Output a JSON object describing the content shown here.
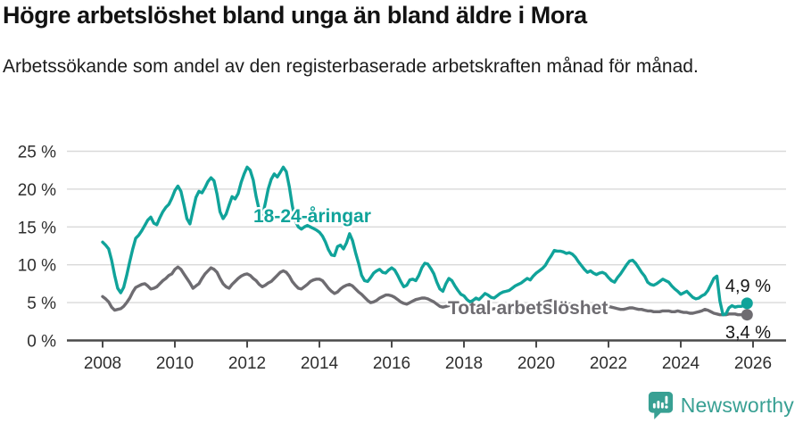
{
  "header": {
    "title": "Högre arbetslöshet bland unga än bland äldre i Mora",
    "subtitle": "Arbetssökande som andel av den registerbaserade arbetskraften månad för månad."
  },
  "chart_data": {
    "type": "line",
    "title": "Högre arbetslöshet bland unga än bland äldre i Mora",
    "subtitle": "Arbetssökande som andel av den registerbaserade arbetskraften månad för månad.",
    "x_start": "2008-01",
    "frequency": "monthly",
    "ylim": [
      0,
      25
    ],
    "grid": "horizontal",
    "legend_position": "inline-labels",
    "y_ticks": [
      {
        "value": 0,
        "label": "0 %"
      },
      {
        "value": 5,
        "label": "5 %"
      },
      {
        "value": 10,
        "label": "10 %"
      },
      {
        "value": 15,
        "label": "15 %"
      },
      {
        "value": 20,
        "label": "20 %"
      },
      {
        "value": 25,
        "label": "25 %"
      }
    ],
    "x_ticks": [
      {
        "value": 2008,
        "label": "2008"
      },
      {
        "value": 2010,
        "label": "2010"
      },
      {
        "value": 2012,
        "label": "2012"
      },
      {
        "value": 2014,
        "label": "2014"
      },
      {
        "value": 2016,
        "label": "2016"
      },
      {
        "value": 2018,
        "label": "2018"
      },
      {
        "value": 2020,
        "label": "2020"
      },
      {
        "value": 2022,
        "label": "2022"
      },
      {
        "value": 2024,
        "label": "2024"
      },
      {
        "value": 2026,
        "label": "2026"
      }
    ],
    "series": [
      {
        "name": "Total arbetslöshet",
        "color": "#6e6c71",
        "end_value_label": "3,4 %",
        "values": [
          5.8,
          5.5,
          5.1,
          4.4,
          4.0,
          4.1,
          4.2,
          4.5,
          5.0,
          5.6,
          6.4,
          7.0,
          7.2,
          7.4,
          7.5,
          7.2,
          6.8,
          6.9,
          7.1,
          7.5,
          7.9,
          8.2,
          8.6,
          8.8,
          9.4,
          9.7,
          9.4,
          8.8,
          8.2,
          7.6,
          6.9,
          7.2,
          7.5,
          8.2,
          8.8,
          9.2,
          9.6,
          9.4,
          9.0,
          8.2,
          7.5,
          7.1,
          6.9,
          7.4,
          7.8,
          8.2,
          8.5,
          8.7,
          8.8,
          8.6,
          8.2,
          7.9,
          7.4,
          7.1,
          7.3,
          7.6,
          7.8,
          8.2,
          8.6,
          9.0,
          9.2,
          9.0,
          8.5,
          7.8,
          7.3,
          6.9,
          6.8,
          7.1,
          7.4,
          7.8,
          8.0,
          8.1,
          8.1,
          7.9,
          7.4,
          6.9,
          6.5,
          6.2,
          6.4,
          6.8,
          7.1,
          7.3,
          7.4,
          7.2,
          6.8,
          6.4,
          6.1,
          5.7,
          5.3,
          5.0,
          5.1,
          5.3,
          5.6,
          5.8,
          6.0,
          6.0,
          5.9,
          5.7,
          5.4,
          5.1,
          4.9,
          4.8,
          5.0,
          5.2,
          5.4,
          5.5,
          5.6,
          5.6,
          5.5,
          5.3,
          5.1,
          4.8,
          4.5,
          4.4,
          4.5,
          4.6,
          4.8,
          4.8,
          4.7,
          4.6,
          4.5,
          4.3,
          4.1,
          4.0,
          3.8,
          3.7,
          3.8,
          3.9,
          4.0,
          4.1,
          4.2,
          4.2,
          4.2,
          4.1,
          4.0,
          3.9,
          3.8,
          3.8,
          3.9,
          4.0,
          4.1,
          4.2,
          4.3,
          4.4,
          4.5,
          4.6,
          4.8,
          5.1,
          5.2,
          5.3,
          5.2,
          5.1,
          5.0,
          4.9,
          4.8,
          4.8,
          4.8,
          4.7,
          4.6,
          4.5,
          4.4,
          4.3,
          4.3,
          4.4,
          4.4,
          4.5,
          4.6,
          4.6,
          4.5,
          4.4,
          4.3,
          4.2,
          4.1,
          4.1,
          4.2,
          4.3,
          4.3,
          4.2,
          4.1,
          4.1,
          4.0,
          3.9,
          3.9,
          3.8,
          3.8,
          3.8,
          3.9,
          3.9,
          3.9,
          3.8,
          3.8,
          3.9,
          3.8,
          3.7,
          3.7,
          3.6,
          3.6,
          3.7,
          3.8,
          3.9,
          4.1,
          4.0,
          3.8,
          3.6,
          3.5,
          3.4,
          3.4,
          3.4,
          3.5,
          3.5,
          3.5,
          3.4,
          3.4,
          3.4,
          3.4
        ]
      },
      {
        "name": "18-24-åringar",
        "color": "#10a39a",
        "end_value_label": "4,9 %",
        "values": [
          13.0,
          12.6,
          12.1,
          10.6,
          8.6,
          6.9,
          6.3,
          7.0,
          8.6,
          10.4,
          12.1,
          13.5,
          13.9,
          14.5,
          15.2,
          15.9,
          16.3,
          15.5,
          15.3,
          16.2,
          17.0,
          17.6,
          18.0,
          18.8,
          19.8,
          20.4,
          19.7,
          18.0,
          16.1,
          15.4,
          17.2,
          18.9,
          19.7,
          19.5,
          20.2,
          21.0,
          21.5,
          21.1,
          19.3,
          17.0,
          16.1,
          16.7,
          17.9,
          19.0,
          18.7,
          19.4,
          20.9,
          22.0,
          22.9,
          22.5,
          21.2,
          19.0,
          17.2,
          16.3,
          18.1,
          20.0,
          21.3,
          22.0,
          21.6,
          22.2,
          22.9,
          22.3,
          20.3,
          17.8,
          15.8,
          15.0,
          14.7,
          15.0,
          15.2,
          15.0,
          14.8,
          14.6,
          14.3,
          13.8,
          13.0,
          12.0,
          11.3,
          11.2,
          12.4,
          12.6,
          12.1,
          12.9,
          14.1,
          13.2,
          11.6,
          10.2,
          8.6,
          7.9,
          7.8,
          8.3,
          8.9,
          9.2,
          9.4,
          9.0,
          8.9,
          9.3,
          9.6,
          9.3,
          8.6,
          7.8,
          7.1,
          7.3,
          8.0,
          8.1,
          7.9,
          8.6,
          9.6,
          10.2,
          10.1,
          9.5,
          8.8,
          7.7,
          6.8,
          6.5,
          7.5,
          8.2,
          7.9,
          7.2,
          6.6,
          6.1,
          5.9,
          5.4,
          5.1,
          5.3,
          5.6,
          5.4,
          5.8,
          6.2,
          6.0,
          5.7,
          5.6,
          5.9,
          6.2,
          6.4,
          6.5,
          6.6,
          6.9,
          7.2,
          7.4,
          7.6,
          7.9,
          8.2,
          8.0,
          8.5,
          8.9,
          9.2,
          9.5,
          9.9,
          10.6,
          11.2,
          11.9,
          11.8,
          11.8,
          11.7,
          11.5,
          11.6,
          11.4,
          11.0,
          10.4,
          9.9,
          9.4,
          9.0,
          9.2,
          8.9,
          8.7,
          8.9,
          9.0,
          8.8,
          8.3,
          7.9,
          7.7,
          8.3,
          8.8,
          9.4,
          10.0,
          10.5,
          10.6,
          10.2,
          9.6,
          9.0,
          8.5,
          7.7,
          7.4,
          7.3,
          7.5,
          7.8,
          8.1,
          7.9,
          7.7,
          7.2,
          6.8,
          6.5,
          6.1,
          6.3,
          6.5,
          6.1,
          5.7,
          5.5,
          5.6,
          5.9,
          6.1,
          6.6,
          7.4,
          8.2,
          8.5,
          5.2,
          3.4,
          3.5,
          4.3,
          4.6,
          4.4,
          4.5,
          4.5,
          4.6,
          4.9
        ]
      }
    ]
  },
  "footer": {
    "brand": "Newsworthy"
  }
}
